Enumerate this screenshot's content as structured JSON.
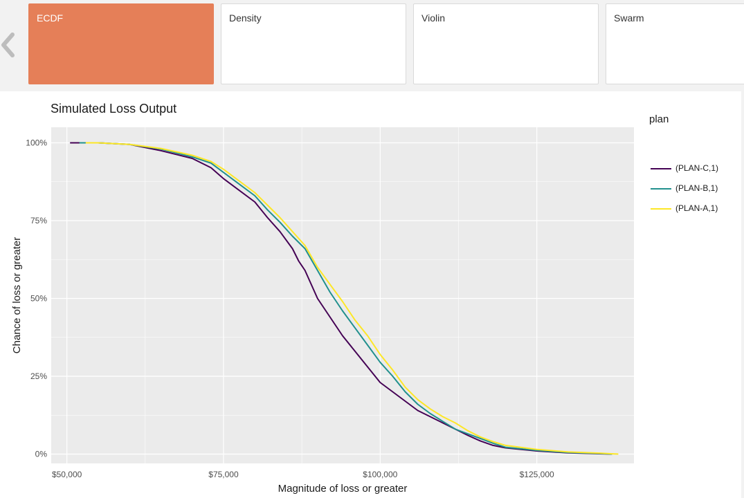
{
  "tabs": [
    {
      "label": "ECDF",
      "active": true
    },
    {
      "label": "Density",
      "active": false
    },
    {
      "label": "Violin",
      "active": false
    },
    {
      "label": "Swarm",
      "active": false
    }
  ],
  "nav": {
    "prev_icon": "chevron-left-icon"
  },
  "chart": {
    "title": "Simulated Loss Output",
    "legend_title": "plan"
  },
  "chart_data": {
    "type": "line",
    "title": "Simulated Loss Output",
    "xlabel": "Magnitude of loss or greater",
    "ylabel": "Chance of loss or greater",
    "xlim": [
      47500,
      140500
    ],
    "ylim": [
      -0.03,
      1.05
    ],
    "x_ticks": [
      50000,
      75000,
      100000,
      125000
    ],
    "x_tick_labels": [
      "$50,000",
      "$75,000",
      "$100,000",
      "$125,000"
    ],
    "y_ticks": [
      0,
      0.25,
      0.5,
      0.75,
      1.0
    ],
    "y_tick_labels": [
      "0%",
      "25%",
      "50%",
      "75%",
      "100%"
    ],
    "grid": true,
    "legend_position": "right",
    "colors": {
      "panel_bg": "#ebebeb",
      "grid": "#ffffff"
    },
    "series": [
      {
        "name": "(PLAN-C,1)",
        "color": "#440154",
        "x": [
          50500,
          55000,
          60000,
          65000,
          70000,
          73000,
          75000,
          77000,
          80000,
          82000,
          84000,
          86000,
          87000,
          88000,
          90000,
          92000,
          94000,
          96000,
          98000,
          100000,
          102000,
          104000,
          106000,
          108000,
          110000,
          112000,
          114000,
          116000,
          118000,
          120000,
          125000,
          130000,
          135000,
          137000
        ],
        "y": [
          1.0,
          1.0,
          0.995,
          0.975,
          0.95,
          0.92,
          0.885,
          0.855,
          0.81,
          0.76,
          0.715,
          0.66,
          0.62,
          0.59,
          0.5,
          0.44,
          0.38,
          0.33,
          0.28,
          0.23,
          0.2,
          0.17,
          0.14,
          0.12,
          0.1,
          0.08,
          0.06,
          0.042,
          0.028,
          0.02,
          0.01,
          0.004,
          0.001,
          0.0
        ]
      },
      {
        "name": "(PLAN-B,1)",
        "color": "#21908d",
        "x": [
          52000,
          55000,
          60000,
          65000,
          70000,
          73000,
          75000,
          77000,
          80000,
          82000,
          84000,
          86000,
          88000,
          90000,
          92000,
          94000,
          96000,
          98000,
          100000,
          102000,
          104000,
          106000,
          108000,
          110000,
          112000,
          114000,
          116000,
          118000,
          120000,
          125000,
          130000,
          135000,
          137000
        ],
        "y": [
          1.0,
          1.0,
          0.995,
          0.98,
          0.955,
          0.935,
          0.905,
          0.875,
          0.83,
          0.785,
          0.745,
          0.7,
          0.66,
          0.59,
          0.52,
          0.46,
          0.405,
          0.35,
          0.295,
          0.25,
          0.2,
          0.16,
          0.13,
          0.105,
          0.08,
          0.065,
          0.05,
          0.035,
          0.022,
          0.012,
          0.005,
          0.002,
          0.0
        ]
      },
      {
        "name": "(PLAN-A,1)",
        "color": "#fde725",
        "x": [
          53000,
          55000,
          60000,
          65000,
          70000,
          73000,
          75000,
          77000,
          80000,
          82000,
          84000,
          86000,
          88000,
          90000,
          92000,
          94000,
          96000,
          98000,
          100000,
          102000,
          104000,
          106000,
          108000,
          110000,
          112000,
          114000,
          116000,
          118000,
          120000,
          125000,
          130000,
          135000,
          138000
        ],
        "y": [
          1.0,
          1.0,
          0.995,
          0.982,
          0.96,
          0.94,
          0.915,
          0.885,
          0.84,
          0.8,
          0.76,
          0.715,
          0.67,
          0.6,
          0.545,
          0.49,
          0.43,
          0.38,
          0.32,
          0.27,
          0.215,
          0.175,
          0.145,
          0.12,
          0.1,
          0.075,
          0.055,
          0.04,
          0.028,
          0.015,
          0.007,
          0.003,
          0.0
        ]
      }
    ]
  }
}
